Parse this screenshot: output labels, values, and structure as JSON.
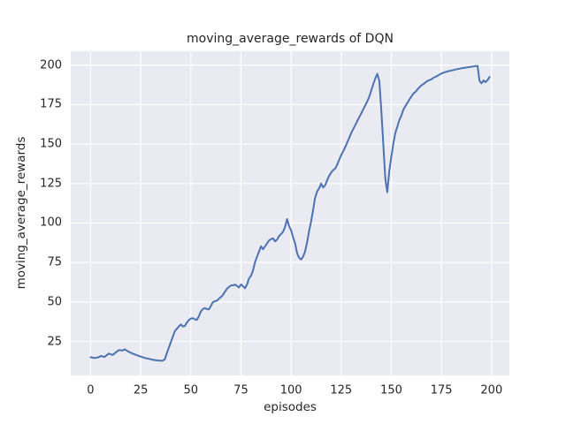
{
  "chart_data": {
    "type": "line",
    "title": "moving_average_rewards of DQN",
    "xlabel": "episodes",
    "ylabel": "moving_average_rewards",
    "xlim": [
      -9.9,
      208.9
    ],
    "ylim": [
      3.5,
      208.8
    ],
    "xticks": [
      0,
      25,
      50,
      75,
      100,
      125,
      150,
      175,
      200
    ],
    "yticks": [
      25,
      50,
      75,
      100,
      125,
      150,
      175,
      200
    ],
    "grid": true,
    "legend_position": "none",
    "style": {
      "figure_bg": "#ffffff",
      "axes_bg": "#eaeaf2",
      "grid_color": "#ffffff",
      "line_color": "#4c72b0",
      "text_color": "#262626"
    },
    "series": [
      {
        "name": "DQN",
        "x": [
          0,
          2,
          4,
          5,
          7,
          9,
          11,
          13,
          14,
          16,
          17,
          19,
          21,
          23,
          25,
          27,
          29,
          31,
          33,
          35,
          36,
          37,
          38,
          39,
          40,
          41,
          42,
          43,
          44,
          45,
          46,
          47,
          48,
          49,
          50,
          51,
          52,
          53,
          54,
          55,
          56,
          57,
          58,
          59,
          60,
          61,
          62,
          63,
          64,
          65,
          66,
          67,
          68,
          69,
          70,
          71,
          72,
          73,
          74,
          75,
          76,
          77,
          78,
          79,
          80,
          81,
          82,
          83,
          84,
          85,
          86,
          87,
          88,
          89,
          90,
          91,
          92,
          93,
          94,
          95,
          96,
          97,
          98,
          99,
          100,
          101,
          102,
          103,
          104,
          105,
          106,
          107,
          108,
          109,
          110,
          111,
          112,
          113,
          114,
          115,
          116,
          117,
          118,
          119,
          120,
          121,
          122,
          123,
          124,
          125,
          126,
          127,
          128,
          129,
          130,
          131,
          132,
          133,
          134,
          135,
          136,
          137,
          138,
          139,
          140,
          141,
          142,
          143,
          144,
          145,
          146,
          147,
          148,
          149,
          150,
          151,
          152,
          153,
          154,
          155,
          156,
          157,
          158,
          159,
          160,
          161,
          162,
          163,
          164,
          165,
          166,
          167,
          168,
          169,
          170,
          171,
          172,
          173,
          174,
          175,
          176,
          177,
          178,
          179,
          180,
          181,
          182,
          183,
          184,
          185,
          186,
          187,
          188,
          189,
          190,
          191,
          192,
          193,
          194,
          195,
          196,
          197,
          198,
          199
        ],
        "y": [
          15,
          14.5,
          15,
          15.8,
          15.2,
          17.3,
          16.5,
          18.5,
          19.5,
          19.3,
          20,
          18.5,
          17.3,
          16.3,
          15.4,
          14.6,
          14,
          13.4,
          13,
          12.8,
          12.9,
          13.6,
          17.5,
          21,
          24.5,
          28,
          31.5,
          33,
          34.5,
          35.8,
          34.5,
          34.8,
          37,
          38.5,
          39.5,
          39.7,
          39,
          38.7,
          41,
          44,
          45.5,
          46.2,
          45.5,
          45.3,
          47.5,
          49.9,
          50.5,
          50.8,
          52,
          53.1,
          54.5,
          56.5,
          58.3,
          59.5,
          60.5,
          60.5,
          61,
          60.2,
          59.2,
          61.1,
          60,
          58.7,
          61,
          64.8,
          66.6,
          70,
          75,
          78.7,
          82,
          85.3,
          83.4,
          85.3,
          87,
          89,
          89.8,
          90.3,
          88.4,
          89.5,
          91.7,
          93,
          94.5,
          97.5,
          102.5,
          98,
          95.5,
          91,
          87.1,
          81,
          78,
          76.9,
          78.7,
          82,
          88,
          95,
          101,
          108.5,
          116,
          120,
          122,
          125,
          122.5,
          124,
          127,
          130,
          132,
          133.5,
          134.5,
          137,
          140,
          143,
          145.5,
          148,
          151,
          154,
          157,
          159.5,
          162,
          164.5,
          167,
          169.5,
          172,
          174.5,
          177,
          180,
          184,
          188,
          191.5,
          194.5,
          190,
          172,
          150,
          128,
          119.5,
          133,
          142,
          150,
          157,
          161,
          165.2,
          168,
          171.8,
          174,
          176,
          178.2,
          180,
          182,
          183,
          184.5,
          186,
          187.2,
          188,
          189,
          190,
          190.5,
          191,
          192,
          192.6,
          193.2,
          194,
          194.7,
          195.2,
          195.6,
          196,
          196.3,
          196.6,
          196.9,
          197.2,
          197.5,
          197.7,
          198,
          198.2,
          198.4,
          198.6,
          198.8,
          199,
          199.2,
          199.4,
          199.5,
          190,
          188.5,
          190.3,
          189.2,
          190.5,
          192.5
        ]
      }
    ]
  }
}
